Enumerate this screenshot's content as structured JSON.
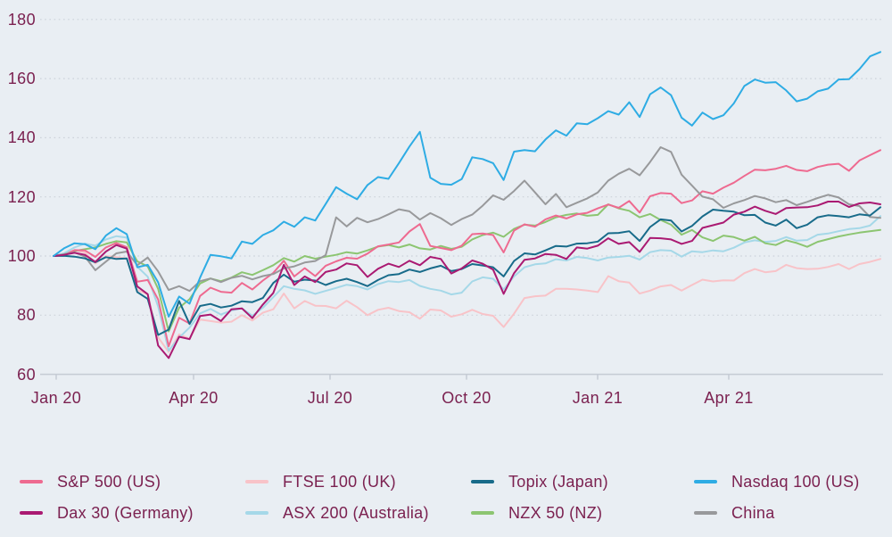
{
  "chart_data": {
    "type": "line",
    "title": "",
    "description": "Equity market indices rebased to 100 at Jan 2020, weekly, Jan 2020 - Jul 2021",
    "grid": "dotted horizontal gridlines",
    "legend_position": "bottom, 4 columns x 2 rows",
    "ylim": [
      60,
      180
    ],
    "y_ticks": [
      180,
      160,
      140,
      120,
      100,
      80,
      60
    ],
    "y_tick_labels": [
      "180",
      "160",
      "140",
      "120",
      "100",
      "80",
      "60"
    ],
    "x_tick_labels": [
      "Jan 20",
      "Apr 20",
      "Jul 20",
      "Oct 20",
      "Jan 21",
      "Apr 21"
    ],
    "colors": {
      "background": "#e9eef3",
      "axis_text": "#7b2150",
      "gridline": "#ccd2da",
      "axis_line": "#c5cbd4"
    },
    "series": [
      {
        "key": "ftse",
        "name": "FTSE 100 (UK)",
        "color": "#f8c3c8",
        "values": [
          100,
          100.8,
          101.9,
          101.2,
          97.5,
          100,
          99.6,
          99.2,
          88.5,
          87,
          72.5,
          67.5,
          73.5,
          72,
          78.5,
          78,
          77.5,
          77.8,
          80,
          78.2,
          80.8,
          82,
          87.3,
          82.3,
          84.8,
          83.2,
          83.1,
          82.3,
          84.9,
          82.7,
          80,
          81.8,
          82.5,
          81.4,
          81,
          78.8,
          81.9,
          81.6,
          79.5,
          80.3,
          81.8,
          80.4,
          79.8,
          76,
          80.5,
          85.8,
          86.4,
          86.6,
          88.9,
          88.9,
          88.7,
          88.3,
          87.8,
          93.2,
          91.5,
          91,
          87.3,
          88.3,
          89.7,
          90.2,
          88.3,
          90.2,
          92,
          91.4,
          91.8,
          91.7,
          94.2,
          95.6,
          94.5,
          94.9,
          97,
          95.9,
          95.6,
          95.7,
          96.3,
          97.3,
          95.6,
          97.3,
          98,
          99
        ]
      },
      {
        "key": "asx",
        "name": "ASX 200 (Australia)",
        "color": "#a5d8e8",
        "values": [
          100,
          100.9,
          102.9,
          104.2,
          103.5,
          105.6,
          106.7,
          106.2,
          96.4,
          93,
          82.9,
          68,
          72.4,
          75.8,
          80.6,
          82.1,
          80.2,
          81.6,
          82.3,
          79.8,
          82.5,
          86.1,
          89.8,
          88.9,
          88.4,
          87.2,
          88.2,
          89.2,
          90.3,
          89.8,
          88.7,
          90.5,
          91.5,
          91.2,
          91.9,
          89.9,
          88.9,
          88.3,
          87,
          87.6,
          91.4,
          92.8,
          92.3,
          88.7,
          93.1,
          96.2,
          97.2,
          97.5,
          98.9,
          98.5,
          99.7,
          99.3,
          98.5,
          99.5,
          99.7,
          100.1,
          98.8,
          101.3,
          102,
          101.8,
          99.8,
          101.6,
          101.3,
          101.9,
          101.6,
          102.8,
          104.6,
          105.3,
          104.8,
          105.1,
          106.4,
          105.2,
          105.4,
          107.2,
          107.6,
          108.4,
          109.1,
          109.4,
          110.3,
          113.5
        ]
      },
      {
        "key": "nzx",
        "name": "NZX 50 (NZ)",
        "color": "#8cc571",
        "values": [
          100,
          100.5,
          101.7,
          102.3,
          102.9,
          104.1,
          105,
          104.6,
          98.2,
          96.5,
          88.9,
          74.5,
          82.5,
          85.4,
          90.7,
          92.4,
          91.5,
          92.7,
          94.5,
          93.6,
          95.2,
          96.9,
          99.3,
          98.1,
          100,
          99.1,
          99.8,
          100.4,
          101.3,
          100.8,
          101.9,
          103.2,
          103.7,
          102.9,
          103.9,
          102.6,
          102.2,
          103.4,
          102.4,
          103.1,
          105.6,
          107.1,
          107.9,
          106.5,
          109.2,
          110.6,
          110.3,
          111.5,
          113.1,
          113.9,
          114.4,
          113.6,
          113.9,
          117.5,
          116.1,
          115.3,
          113.1,
          114.2,
          112.2,
          110.6,
          107.2,
          108.8,
          106.3,
          105.1,
          106.9,
          106.4,
          105.2,
          106.5,
          104.3,
          103.7,
          105.3,
          104.4,
          103.1,
          104.8,
          105.7,
          106.6,
          107.3,
          107.9,
          108.4,
          108.8
        ]
      },
      {
        "key": "sp",
        "name": "S&P 500 (US)",
        "color": "#ee6a90",
        "values": [
          100,
          100.3,
          102,
          101.9,
          99.7,
          102.9,
          104.4,
          103,
          91.3,
          91.9,
          85.3,
          69.5,
          79.1,
          77.2,
          86.5,
          89.3,
          87.9,
          87.6,
          90.9,
          88.7,
          91.7,
          94.3,
          98.4,
          93.1,
          95.9,
          93.2,
          96.7,
          98.2,
          99.4,
          99.1,
          100.8,
          103.3,
          103.9,
          104.6,
          108.3,
          110.8,
          103.4,
          102.7,
          102,
          103.5,
          107.4,
          107.6,
          107.1,
          101.2,
          108.6,
          110.7,
          109.9,
          112.4,
          113.7,
          112.7,
          114.1,
          114.6,
          116.1,
          117.4,
          116.3,
          118.6,
          114.7,
          120.2,
          121.3,
          121.1,
          117.9,
          118.8,
          121.9,
          121.1,
          123.1,
          124.8,
          127.1,
          129.2,
          129,
          129.5,
          130.5,
          129.1,
          128.7,
          130.1,
          130.9,
          131.2,
          128.8,
          132.3,
          134.1,
          135.8
        ]
      },
      {
        "key": "china",
        "name": "China",
        "color": "#98999b",
        "values": [
          100,
          100.6,
          101.2,
          99.8,
          95.2,
          98.1,
          100.9,
          101.5,
          96.9,
          99.5,
          94.8,
          88.5,
          89.8,
          88.2,
          91.5,
          92.4,
          91.2,
          92.6,
          93.3,
          92.1,
          93.2,
          93.9,
          95.8,
          96.5,
          97.8,
          98.3,
          100.3,
          113.1,
          110,
          112.9,
          111.4,
          112.5,
          114.1,
          115.8,
          115.1,
          112.3,
          114.5,
          112.8,
          110.5,
          112.5,
          114,
          117,
          120.5,
          119,
          122,
          125.5,
          121.5,
          117.5,
          121,
          116.5,
          118,
          119.5,
          121.5,
          125.5,
          127.8,
          129.5,
          127.3,
          131.8,
          136.8,
          135.2,
          127.5,
          123.8,
          120.1,
          119.2,
          116.3,
          117.8,
          118.9,
          120.3,
          119.5,
          118.2,
          118.9,
          117.2,
          118.3,
          119.6,
          120.7,
          119.8,
          117.5,
          116.9,
          113.2,
          112.9
        ]
      },
      {
        "key": "topix",
        "name": "Topix (Japan)",
        "color": "#186b8a",
        "values": [
          100,
          100.1,
          99.8,
          99.2,
          97.9,
          99.6,
          99,
          99.2,
          87.8,
          85.5,
          73.3,
          75.1,
          84.8,
          77,
          83.1,
          83.8,
          82.6,
          83.2,
          84.7,
          84.4,
          85.8,
          90.9,
          93.7,
          91.3,
          92,
          91.7,
          90.2,
          91.5,
          92.3,
          91.2,
          89.8,
          91.9,
          93.5,
          93.9,
          95.4,
          94.6,
          95.8,
          96.7,
          94.9,
          95.6,
          97.3,
          96.8,
          96.2,
          93.1,
          98.3,
          100.9,
          100.5,
          101.9,
          103.4,
          103.2,
          104.2,
          104.3,
          104.9,
          107.7,
          107.8,
          108.4,
          105.1,
          109.8,
          112.4,
          112,
          108.3,
          110.2,
          113.4,
          115.7,
          115.3,
          115,
          113.8,
          113.9,
          111.3,
          110.3,
          112.3,
          109.4,
          110.6,
          113.1,
          113.8,
          113.5,
          113.1,
          114.1,
          113.7,
          116.5
        ]
      },
      {
        "key": "dax",
        "name": "Dax 30 (Germany)",
        "color": "#aa1a72",
        "values": [
          100,
          100.4,
          101.1,
          100.4,
          98,
          101.5,
          103.7,
          102.5,
          89.7,
          87.1,
          69.7,
          65.5,
          72.7,
          71.9,
          79.7,
          80.2,
          78,
          82,
          82.3,
          79,
          83.6,
          87.5,
          97,
          90.2,
          93.1,
          91.2,
          94.6,
          95.4,
          97.5,
          96.9,
          92.9,
          95.7,
          97.4,
          96.3,
          98.4,
          96.9,
          99.7,
          99,
          94.1,
          95.8,
          98.5,
          97.4,
          95.4,
          87.2,
          94.2,
          98.7,
          99.2,
          100.7,
          100.4,
          99,
          102.9,
          102.5,
          103.5,
          106,
          104.1,
          104.7,
          101.4,
          106.1,
          106,
          105.6,
          104.1,
          105.1,
          109.5,
          110.4,
          111.3,
          114,
          115,
          116.7,
          115.3,
          114.2,
          116.2,
          116.4,
          116.5,
          117.1,
          118.4,
          118.4,
          116.6,
          117.8,
          118.1,
          117.5
        ]
      },
      {
        "key": "ndx",
        "name": "Nasdaq 100 (US)",
        "color": "#2eace4",
        "values": [
          100,
          102.6,
          104.3,
          104,
          102.3,
          106.9,
          109.4,
          107.4,
          96.2,
          97,
          91.1,
          79.5,
          86.3,
          83.9,
          92.7,
          100.4,
          99.9,
          99.2,
          104.9,
          104.1,
          107.1,
          108.7,
          111.6,
          109.9,
          113.1,
          112,
          117.6,
          123.3,
          121.1,
          119.2,
          124,
          126.7,
          126.1,
          131.4,
          137,
          142,
          126.5,
          124.4,
          124.1,
          126,
          133.4,
          132.8,
          131.4,
          125.7,
          135.3,
          135.8,
          135.4,
          139.4,
          142.5,
          140.7,
          144.9,
          144.6,
          146.6,
          149,
          147.8,
          152,
          147,
          154.7,
          157,
          154.4,
          146.8,
          144.1,
          148.5,
          146.3,
          147.6,
          151.6,
          157.5,
          159.7,
          158.6,
          158.8,
          156,
          152.3,
          153.2,
          155.7,
          156.6,
          159.7,
          159.8,
          163.2,
          167.5,
          169
        ]
      }
    ],
    "legend": [
      {
        "label": "S&P 500 (US)",
        "key": "sp"
      },
      {
        "label": "FTSE 100 (UK)",
        "key": "ftse"
      },
      {
        "label": "Topix (Japan)",
        "key": "topix"
      },
      {
        "label": "Nasdaq 100 (US)",
        "key": "ndx"
      },
      {
        "label": "Dax 30 (Germany)",
        "key": "dax"
      },
      {
        "label": "ASX 200 (Australia)",
        "key": "asx"
      },
      {
        "label": "NZX 50 (NZ)",
        "key": "nzx"
      },
      {
        "label": "China",
        "key": "china"
      }
    ]
  }
}
